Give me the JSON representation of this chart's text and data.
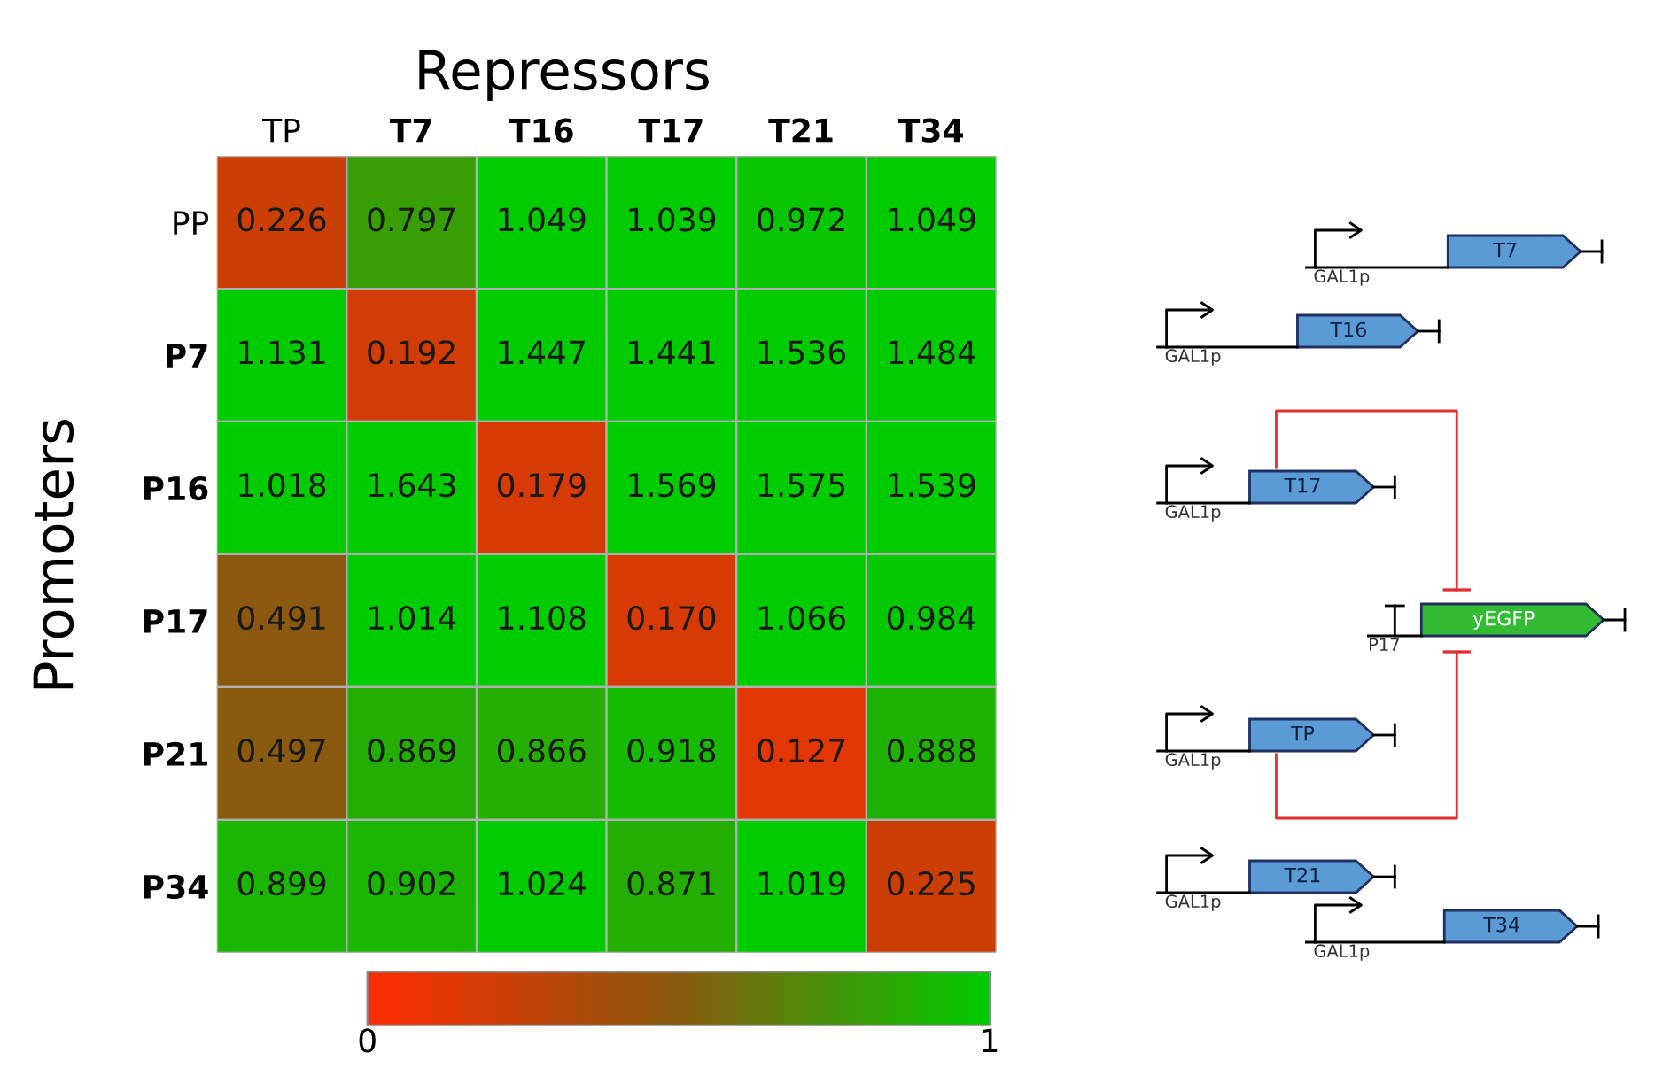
{
  "chart_data": {
    "type": "heatmap",
    "title": "Repressors",
    "ylabel": "Promoters",
    "categories": [
      "TP",
      "T7",
      "T16",
      "T17",
      "T21",
      "T34"
    ],
    "y_categories": [
      "PP",
      "P7",
      "P16",
      "P17",
      "P21",
      "P34"
    ],
    "cells": [
      [
        0.226,
        0.797,
        1.049,
        1.039,
        0.972,
        1.049
      ],
      [
        1.131,
        0.192,
        1.447,
        1.441,
        1.536,
        1.484
      ],
      [
        1.018,
        1.643,
        0.179,
        1.569,
        1.575,
        1.539
      ],
      [
        0.491,
        1.014,
        1.108,
        0.17,
        1.066,
        0.984
      ],
      [
        0.497,
        0.869,
        0.866,
        0.918,
        0.127,
        0.888
      ],
      [
        0.899,
        0.902,
        1.024,
        0.871,
        1.019,
        0.225
      ]
    ],
    "cell_labels": [
      [
        "0.226",
        "0.797",
        "1.049",
        "1.039",
        "0.972",
        "1.049"
      ],
      [
        "1.131",
        "0.192",
        "1.447",
        "1.441",
        "1.536",
        "1.484"
      ],
      [
        "1.018",
        "1.643",
        "0.179",
        "1.569",
        "1.575",
        "1.539"
      ],
      [
        "0.491",
        "1.014",
        "1.108",
        "0.170",
        "1.066",
        "0.984"
      ],
      [
        "0.497",
        "0.869",
        "0.866",
        "0.918",
        "0.127",
        "0.888"
      ],
      [
        "0.899",
        "0.902",
        "1.024",
        "0.871",
        "1.019",
        "0.225"
      ]
    ],
    "data_labels": true,
    "clim": [
      0,
      1
    ],
    "cticks": [
      0,
      1
    ],
    "annotations": [
      "GAL1p",
      "T7",
      "GAL1p",
      "T16",
      "GAL1p",
      "T17",
      "P17",
      "yEGFP",
      "GAL1p",
      "TP",
      "GAL1p",
      "T21",
      "GAL1p",
      "T34"
    ]
  }
}
